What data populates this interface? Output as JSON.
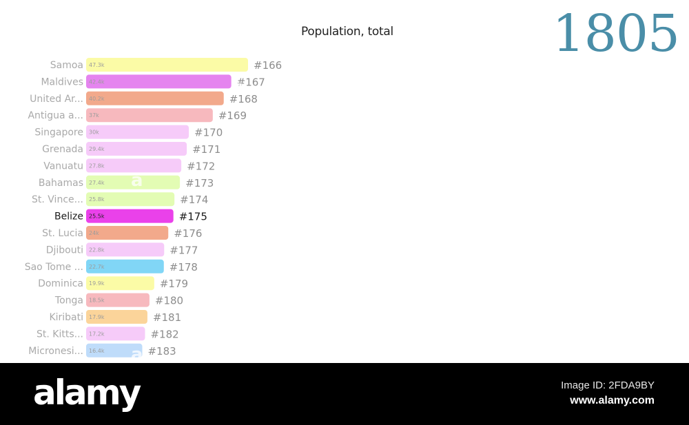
{
  "chart_data": {
    "type": "bar",
    "orientation": "horizontal",
    "title": "Population, total",
    "year": "1805",
    "categories": [
      "Samoa",
      "Maldives",
      "United Ar...",
      "Antigua a...",
      "Singapore",
      "Grenada",
      "Vanuatu",
      "Bahamas",
      "St. Vince...",
      "Belize",
      "St. Lucia",
      "Djibouti",
      "Sao Tome ...",
      "Dominica",
      "Tonga",
      "Kiribati",
      "St. Kitts...",
      "Micronesi..."
    ],
    "values": [
      47300,
      42400,
      40200,
      37000,
      30000,
      29400,
      27800,
      27400,
      25800,
      25500,
      24000,
      22800,
      22700,
      19900,
      18500,
      17900,
      17200,
      16400
    ],
    "value_labels": [
      "47.3k",
      "42.4k",
      "40.2k",
      "37k",
      "30k",
      "29.4k",
      "27.8k",
      "27.4k",
      "25.8k",
      "25.5k",
      "24k",
      "22.8k",
      "22.7k",
      "19.9k",
      "18.5k",
      "17.9k",
      "17.2k",
      "16.4k"
    ],
    "ranks": [
      "#166",
      "#167",
      "#168",
      "#169",
      "#170",
      "#171",
      "#172",
      "#173",
      "#174",
      "#175",
      "#176",
      "#177",
      "#178",
      "#179",
      "#180",
      "#181",
      "#182",
      "#183"
    ],
    "colors": [
      "#fbfba6",
      "#e584ef",
      "#f2a98b",
      "#f7b9be",
      "#f6cbf9",
      "#f6cbf9",
      "#f6cbf9",
      "#e3fcb4",
      "#e3fcb4",
      "#ea41ea",
      "#f2a98b",
      "#f6cbf9",
      "#81d6f6",
      "#fbfba6",
      "#f7b9be",
      "#fbd49a",
      "#f6cbf9",
      "#bfdcfa"
    ],
    "highlight": "Belize",
    "highlight_color": "#ea41ea",
    "grid": false,
    "legend": "none"
  },
  "watermark": {
    "glyph": "a",
    "logo": "alamy",
    "image_id": "Image ID: 2FDA9BY",
    "url": "www.alamy.com"
  }
}
